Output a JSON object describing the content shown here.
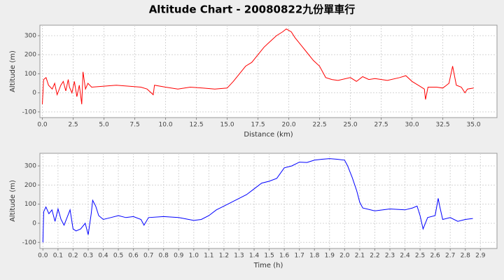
{
  "title": "Altitude Chart - 20080822九份單車行",
  "chart_data": [
    {
      "type": "line",
      "xlabel": "Distance (km)",
      "ylabel": "Altitude (m)",
      "color": "#ff0000",
      "grid": true,
      "xlim": [
        -0.2,
        36.9
      ],
      "ylim": [
        -130,
        355
      ],
      "xticks": [
        {
          "value": 0,
          "label": "0.0"
        },
        2.5,
        {
          "value": 5,
          "label": "5.0"
        },
        7.5,
        {
          "value": 10,
          "label": "10.0"
        },
        12.5,
        {
          "value": 15,
          "label": "15.0"
        },
        17.5,
        {
          "value": 20,
          "label": "20.0"
        },
        22.5,
        {
          "value": 25,
          "label": "25.0"
        },
        27.5,
        {
          "value": 30,
          "label": "30.0"
        },
        32.5,
        {
          "value": 35,
          "label": "35.0"
        }
      ],
      "yticks": [
        -100,
        0,
        100,
        200,
        300
      ],
      "x": [
        0,
        0.1,
        0.3,
        0.5,
        0.8,
        1.0,
        1.2,
        1.5,
        1.7,
        1.9,
        2.1,
        2.2,
        2.4,
        2.6,
        2.8,
        3.0,
        3.2,
        3.3,
        3.5,
        3.7,
        4.0,
        5.0,
        6.0,
        7.0,
        8.0,
        8.5,
        9.0,
        9.1,
        10.0,
        11.0,
        12.0,
        13.0,
        14.0,
        15.0,
        15.5,
        16.0,
        16.5,
        17.0,
        17.5,
        18.0,
        18.5,
        19.0,
        19.5,
        19.8,
        20.2,
        20.5,
        21.0,
        21.5,
        22.0,
        22.5,
        23.0,
        23.5,
        24.0,
        25.0,
        25.5,
        26.0,
        26.5,
        27.0,
        28.0,
        29.0,
        29.5,
        30.0,
        30.5,
        31.0,
        31.1,
        31.3,
        32.0,
        32.5,
        33.0,
        33.3,
        33.6,
        34.0,
        34.3,
        34.5,
        35.0
      ],
      "values": [
        -60,
        70,
        80,
        40,
        20,
        50,
        -10,
        40,
        60,
        10,
        70,
        30,
        0,
        60,
        -20,
        40,
        -60,
        110,
        20,
        50,
        30,
        35,
        40,
        35,
        30,
        20,
        -10,
        40,
        30,
        20,
        30,
        25,
        20,
        25,
        60,
        100,
        140,
        160,
        200,
        240,
        270,
        300,
        320,
        335,
        320,
        290,
        250,
        210,
        170,
        140,
        80,
        70,
        65,
        80,
        60,
        85,
        70,
        75,
        65,
        80,
        90,
        60,
        40,
        20,
        -35,
        30,
        30,
        25,
        50,
        140,
        40,
        30,
        0,
        20,
        25
      ]
    },
    {
      "type": "line",
      "xlabel": "Time (h)",
      "ylabel": "Altitude (m)",
      "color": "#0000ff",
      "grid": true,
      "xlim": [
        -0.02,
        3.01
      ],
      "ylim": [
        -132,
        366
      ],
      "xticks": [
        {
          "value": 0,
          "label": "0.0"
        },
        0.1,
        0.2,
        0.3,
        0.4,
        0.5,
        0.6,
        0.7,
        0.8,
        0.9,
        {
          "value": 1,
          "label": "1.0"
        },
        1.1,
        1.2,
        1.3,
        1.4,
        1.5,
        1.6,
        1.7,
        1.8,
        1.9,
        {
          "value": 2,
          "label": "2.0"
        },
        2.1,
        2.2,
        2.3,
        2.4,
        2.5,
        2.6,
        2.7,
        2.8,
        2.9
      ],
      "yticks": [
        -100,
        0,
        100,
        200,
        300
      ],
      "x": [
        0,
        0.005,
        0.02,
        0.04,
        0.06,
        0.08,
        0.1,
        0.12,
        0.14,
        0.16,
        0.18,
        0.2,
        0.22,
        0.25,
        0.28,
        0.3,
        0.32,
        0.33,
        0.35,
        0.37,
        0.4,
        0.45,
        0.5,
        0.55,
        0.6,
        0.65,
        0.67,
        0.7,
        0.8,
        0.9,
        1.0,
        1.05,
        1.1,
        1.15,
        1.2,
        1.25,
        1.3,
        1.35,
        1.4,
        1.45,
        1.5,
        1.55,
        1.6,
        1.65,
        1.7,
        1.75,
        1.8,
        1.85,
        1.9,
        1.95,
        2.0,
        2.02,
        2.05,
        2.08,
        2.1,
        2.12,
        2.2,
        2.3,
        2.4,
        2.45,
        2.48,
        2.5,
        2.52,
        2.55,
        2.6,
        2.62,
        2.63,
        2.65,
        2.7,
        2.75,
        2.8,
        2.85
      ],
      "values": [
        -100,
        60,
        85,
        50,
        70,
        10,
        75,
        20,
        -10,
        30,
        70,
        -30,
        -40,
        -30,
        0,
        -60,
        50,
        120,
        90,
        40,
        20,
        30,
        40,
        30,
        35,
        20,
        -10,
        30,
        35,
        30,
        15,
        20,
        40,
        70,
        90,
        110,
        130,
        150,
        180,
        210,
        220,
        235,
        290,
        300,
        320,
        318,
        330,
        335,
        338,
        335,
        330,
        300,
        240,
        170,
        110,
        80,
        65,
        75,
        70,
        80,
        90,
        40,
        -30,
        30,
        40,
        130,
        90,
        20,
        30,
        10,
        20,
        25
      ]
    }
  ]
}
